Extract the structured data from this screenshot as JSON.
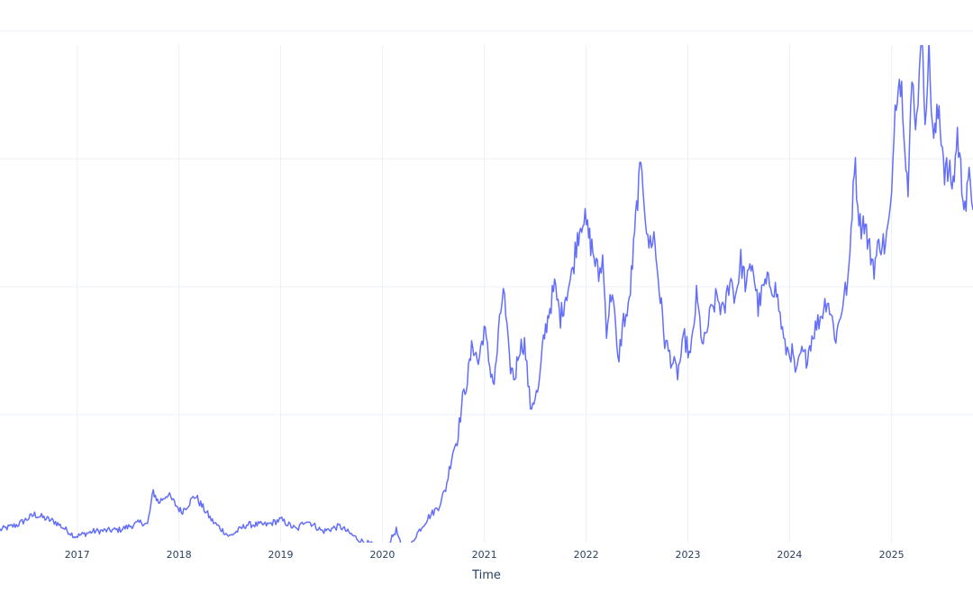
{
  "chart_data": {
    "type": "line",
    "title": "",
    "xlabel": "Time",
    "ylabel": "",
    "x_ticks": [
      "2017",
      "2018",
      "2019",
      "2020",
      "2021",
      "2022",
      "2023",
      "2024",
      "2025"
    ],
    "xlim": [
      "2016-03-30",
      "2025-10-20"
    ],
    "ylim": [
      0,
      10.25
    ],
    "grid": true,
    "legend": "none",
    "line_color": "#636efa",
    "series": [
      {
        "x": [
          "2016-03-30",
          "2016-06-01",
          "2016-08-01",
          "2016-10-15",
          "2016-12-25",
          "2017-03-01",
          "2017-06-01",
          "2017-08-20",
          "2017-09-10",
          "2017-10-01",
          "2017-10-20",
          "2017-11-20",
          "2018-01-10",
          "2018-03-01",
          "2018-03-20",
          "2018-05-01",
          "2018-07-01",
          "2018-09-01",
          "2018-11-15",
          "2019-01-01",
          "2019-03-01",
          "2019-04-01",
          "2019-06-01",
          "2019-08-01",
          "2019-10-10",
          "2019-12-01",
          "2020-01-15",
          "2020-02-20",
          "2020-03-20",
          "2020-05-01",
          "2020-06-15",
          "2020-07-20",
          "2020-08-15",
          "2020-09-10",
          "2020-09-25",
          "2020-10-15",
          "2020-11-01",
          "2020-11-20",
          "2020-12-10",
          "2020-12-31",
          "2021-01-20",
          "2021-02-05",
          "2021-02-20",
          "2021-03-10",
          "2021-04-01",
          "2021-04-20",
          "2021-05-05",
          "2021-05-25",
          "2021-06-15",
          "2021-07-15",
          "2021-08-01",
          "2021-08-20",
          "2021-09-10",
          "2021-10-01",
          "2021-10-20",
          "2021-11-10",
          "2021-12-01",
          "2021-12-20",
          "2022-01-10",
          "2022-01-25",
          "2022-02-15",
          "2022-03-01",
          "2022-03-15",
          "2022-04-05",
          "2022-04-25",
          "2022-05-15",
          "2022-06-01",
          "2022-06-20",
          "2022-07-05",
          "2022-07-20",
          "2022-08-10",
          "2022-09-01",
          "2022-09-20",
          "2022-10-10",
          "2022-11-01",
          "2022-11-25",
          "2022-12-20",
          "2023-01-10",
          "2023-02-01",
          "2023-02-25",
          "2023-03-20",
          "2023-04-15",
          "2023-05-10",
          "2023-06-01",
          "2023-06-20",
          "2023-07-10",
          "2023-07-30",
          "2023-08-20",
          "2023-09-10",
          "2023-10-01",
          "2023-10-25",
          "2023-11-15",
          "2023-12-15",
          "2024-01-10",
          "2024-01-25",
          "2024-02-10",
          "2024-03-01",
          "2024-03-25",
          "2024-04-20",
          "2024-05-15",
          "2024-06-15",
          "2024-07-10",
          "2024-08-01",
          "2024-08-20",
          "2024-09-10",
          "2024-09-25",
          "2024-10-10",
          "2024-10-30",
          "2024-11-20",
          "2024-12-10",
          "2025-01-01",
          "2025-01-10",
          "2025-01-25",
          "2025-02-10",
          "2025-03-01",
          "2025-03-15",
          "2025-04-01",
          "2025-04-15",
          "2025-05-01",
          "2025-05-15",
          "2025-06-01",
          "2025-06-20",
          "2025-07-10",
          "2025-07-25",
          "2025-08-10",
          "2025-08-25",
          "2025-09-10",
          "2025-09-25",
          "2025-10-10",
          "2025-10-20"
        ],
        "y": [
          0.25,
          0.35,
          0.55,
          0.4,
          0.12,
          0.22,
          0.25,
          0.4,
          0.35,
          1.0,
          0.78,
          0.95,
          0.6,
          0.92,
          0.75,
          0.42,
          0.12,
          0.35,
          0.35,
          0.45,
          0.25,
          0.45,
          0.22,
          0.32,
          0.05,
          -0.05,
          -0.1,
          0.25,
          -0.3,
          0.15,
          0.5,
          0.7,
          1.05,
          1.8,
          2.0,
          2.8,
          3.2,
          3.9,
          3.5,
          4.2,
          3.45,
          3.1,
          4.0,
          5.0,
          3.5,
          3.2,
          3.8,
          3.9,
          2.65,
          3.0,
          3.95,
          4.5,
          5.0,
          4.4,
          4.85,
          5.2,
          6.0,
          6.4,
          6.0,
          5.7,
          5.2,
          5.55,
          4.2,
          5.0,
          3.5,
          4.35,
          4.5,
          5.7,
          6.8,
          7.4,
          5.8,
          6.0,
          5.0,
          3.95,
          3.6,
          3.3,
          4.0,
          3.6,
          4.8,
          3.8,
          4.4,
          4.8,
          4.45,
          5.2,
          4.8,
          5.5,
          5.0,
          5.5,
          4.6,
          5.0,
          5.1,
          4.9,
          3.8,
          3.7,
          3.25,
          3.7,
          3.6,
          4.1,
          4.4,
          4.8,
          4.0,
          4.7,
          5.2,
          7.5,
          6.2,
          6.3,
          5.8,
          5.4,
          5.9,
          5.8,
          6.6,
          8.3,
          9.2,
          8.7,
          6.8,
          9.0,
          8.2,
          10.0,
          8.5,
          9.5,
          7.8,
          8.5,
          7.3,
          7.2,
          7.0,
          8.0,
          7.0,
          6.6,
          7.2,
          6.5
        ]
      }
    ]
  }
}
